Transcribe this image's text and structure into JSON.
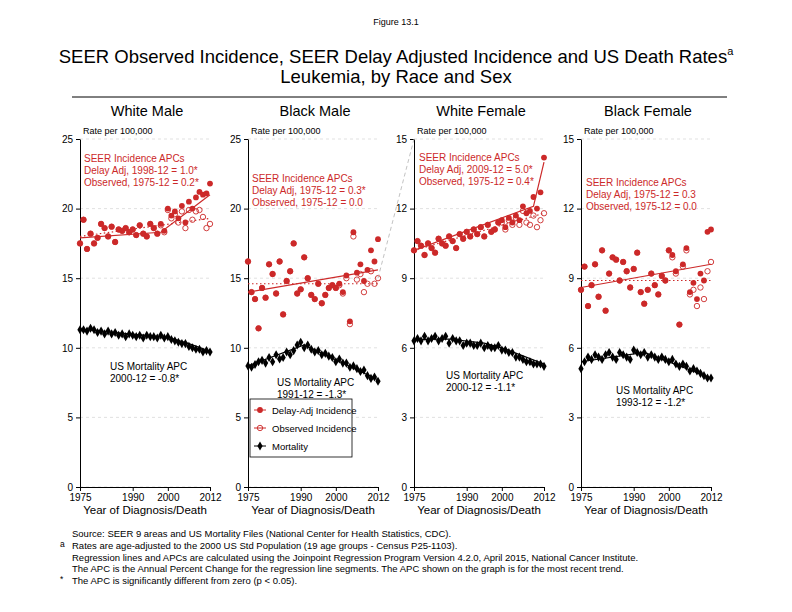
{
  "figure_label": "Figure 13.1",
  "title": "SEER Observed Incidence, SEER Delay Adjusted Incidence and US Death Rates",
  "title_note": "a",
  "subtitle": "Leukemia, by Race and Sex",
  "footnotes": [
    {
      "text": "Source: SEER 9 areas and US Mortality Files (National Center for Health Statistics, CDC)."
    },
    {
      "marker": "a",
      "text": "Rates are age-adjusted to the 2000 US Std Population (19 age groups - Census P25-1103)."
    },
    {
      "text": "Regression lines and APCs are calculated using the Joinpoint Regression Program Version 4.2.0, April 2015, National Cancer Institute."
    },
    {
      "text": "The APC is the Annual Percent Change for the regression line segments. The APC shown on the graph is for the most recent trend."
    },
    {
      "marker": "*",
      "text": "The APC is significantly different from zero (p < 0.05)."
    }
  ],
  "chart_data": [
    {
      "type": "scatter",
      "title": "White Male",
      "ylabel": "Rate per 100,000",
      "xlabel": "Year of Diagnosis/Death",
      "x": [
        1975,
        1976,
        1977,
        1978,
        1979,
        1980,
        1981,
        1982,
        1983,
        1984,
        1985,
        1986,
        1987,
        1988,
        1989,
        1990,
        1991,
        1992,
        1993,
        1994,
        1995,
        1996,
        1997,
        1998,
        1999,
        2000,
        2001,
        2002,
        2003,
        2004,
        2005,
        2006,
        2007,
        2008,
        2009,
        2010,
        2011,
        2012
      ],
      "xlim": [
        1975,
        2012
      ],
      "xticks": [
        1975,
        1990,
        2000,
        2012
      ],
      "ylim": [
        0,
        25
      ],
      "yticks": [
        0,
        5,
        10,
        15,
        20,
        25
      ],
      "grid": true,
      "incidence_note": [
        "SEER Incidence APCs",
        "Delay Adj, 1998-12 = 1.0*",
        "Observed, 1975-12 = 0.2*"
      ],
      "mortality_note": [
        "US Mortality APC",
        "2000-12 = -0.8*"
      ],
      "series": [
        {
          "color": "#cc2929",
          "marker": "circle",
          "line_style": "solid",
          "values": [
            17.5,
            19.2,
            17.1,
            18.2,
            17.5,
            17.9,
            18.9,
            18.6,
            18.0,
            18.7,
            17.6,
            18.5,
            18.4,
            18.6,
            18.3,
            18.5,
            18.1,
            18.8,
            18.2,
            18.0,
            18.9,
            18.6,
            18.2,
            18.9,
            18.4,
            20.0,
            19.5,
            19.8,
            19.3,
            20.2,
            19.0,
            20.5,
            20.0,
            20.8,
            21.2,
            21.0,
            21.1,
            21.8
          ],
          "trend": {
            "x": [
              1975,
              1998,
              2012
            ],
            "values": [
              17.9,
              18.3,
              21.0
            ]
          }
        },
        {
          "color": "#cc2929",
          "marker": "circle-open",
          "line_style": "dotted",
          "values": [
            17.5,
            19.2,
            17.1,
            18.2,
            17.5,
            17.9,
            18.9,
            18.6,
            18.0,
            18.7,
            17.6,
            18.5,
            18.4,
            18.6,
            18.3,
            18.5,
            18.1,
            18.8,
            18.2,
            18.0,
            18.9,
            18.6,
            18.2,
            18.8,
            18.3,
            19.9,
            19.3,
            19.6,
            19.0,
            19.8,
            18.6,
            19.9,
            19.2,
            19.8,
            19.9,
            19.4,
            18.6,
            18.9
          ],
          "trend": {
            "x": [
              1975,
              2012
            ],
            "values": [
              18.0,
              19.3
            ]
          }
        },
        {
          "color": "#000000",
          "marker": "diamond",
          "line_style": "solid",
          "values": [
            11.3,
            11.3,
            11.2,
            11.4,
            11.3,
            11.1,
            11.2,
            11.0,
            11.2,
            11.0,
            11.1,
            10.9,
            11.0,
            10.8,
            11.0,
            10.9,
            10.8,
            10.9,
            10.7,
            10.9,
            10.8,
            10.8,
            10.7,
            10.9,
            10.7,
            10.8,
            10.6,
            10.5,
            10.4,
            10.3,
            10.3,
            10.1,
            10.0,
            9.9,
            9.9,
            9.7,
            9.8,
            9.7
          ],
          "trend": {
            "x": [
              1975,
              1985,
              2000,
              2006,
              2012
            ],
            "values": [
              11.35,
              11.1,
              10.75,
              10.3,
              9.75
            ]
          }
        }
      ]
    },
    {
      "type": "scatter",
      "title": "Black Male",
      "ylabel": "Rate per 100,000",
      "xlabel": "Year of Diagnosis/Death",
      "x": [
        1975,
        1976,
        1977,
        1978,
        1979,
        1980,
        1981,
        1982,
        1983,
        1984,
        1985,
        1986,
        1987,
        1988,
        1989,
        1990,
        1991,
        1992,
        1993,
        1994,
        1995,
        1996,
        1997,
        1998,
        1999,
        2000,
        2001,
        2002,
        2003,
        2004,
        2005,
        2006,
        2007,
        2008,
        2009,
        2010,
        2011,
        2012
      ],
      "xlim": [
        1975,
        2012
      ],
      "xticks": [
        1975,
        1990,
        2000,
        2012
      ],
      "ylim": [
        0,
        25
      ],
      "yticks": [
        0,
        5,
        10,
        15,
        20,
        25
      ],
      "grid": true,
      "legend": "lower left",
      "incidence_note": [
        "SEER Incidence APCs",
        "Delay Adj, 1975-12 = 0.3*",
        "Observed, 1975-12 = 0.0"
      ],
      "mortality_note": [
        "US Mortality APC",
        "1991-12 = -1.3*"
      ],
      "series": [
        {
          "name": "Delay-Adj Incidence",
          "color": "#cc2929",
          "marker": "circle",
          "line_style": "solid",
          "values": [
            16.2,
            14.0,
            13.5,
            11.4,
            14.3,
            13.6,
            16.0,
            15.3,
            13.9,
            16.2,
            12.4,
            14.8,
            15.5,
            17.5,
            13.9,
            14.2,
            16.5,
            15.0,
            13.8,
            13.5,
            14.6,
            13.2,
            13.8,
            14.3,
            14.5,
            14.3,
            14.6,
            14.0,
            15.2,
            11.9,
            18.3,
            15.4,
            16.0,
            14.8,
            15.6,
            17.0,
            16.2,
            17.8
          ],
          "trend": {
            "x": [
              1975,
              2012
            ],
            "values": [
              14.0,
              15.6
            ]
          }
        },
        {
          "name": "Observed Incidence",
          "color": "#cc2929",
          "marker": "circle-open",
          "line_style": "dotted",
          "values": [
            16.2,
            14.0,
            13.5,
            11.4,
            14.3,
            13.6,
            16.0,
            15.3,
            13.9,
            16.2,
            12.4,
            14.8,
            15.5,
            17.5,
            13.9,
            14.2,
            16.5,
            15.0,
            13.8,
            13.5,
            14.6,
            13.2,
            13.8,
            14.3,
            14.5,
            14.3,
            14.5,
            13.9,
            15.0,
            11.7,
            18.0,
            14.9,
            15.3,
            14.0,
            14.6,
            15.5,
            14.6,
            15.0
          ],
          "trend": {
            "x": [
              1975,
              2012
            ],
            "values": [
              14.6,
              14.6
            ]
          }
        },
        {
          "name": "Mortality",
          "color": "#000000",
          "marker": "diamond",
          "line_style": "solid",
          "values": [
            8.7,
            8.6,
            8.8,
            9.0,
            9.1,
            8.9,
            9.3,
            9.0,
            9.5,
            9.2,
            9.3,
            9.7,
            9.5,
            9.8,
            10.2,
            10.4,
            10.0,
            10.2,
            9.9,
            9.7,
            9.8,
            9.5,
            9.6,
            9.4,
            9.3,
            9.0,
            9.2,
            8.9,
            8.9,
            8.6,
            8.7,
            8.5,
            8.3,
            8.4,
            8.0,
            7.8,
            7.9,
            7.6
          ],
          "trend": {
            "x": [
              1975,
              1991,
              2012
            ],
            "values": [
              8.7,
              10.2,
              7.7
            ]
          }
        }
      ]
    },
    {
      "type": "scatter",
      "title": "White Female",
      "ylabel": "Rate per 100,000",
      "xlabel": "Year of Diagnosis/Death",
      "x": [
        1975,
        1976,
        1977,
        1978,
        1979,
        1980,
        1981,
        1982,
        1983,
        1984,
        1985,
        1986,
        1987,
        1988,
        1989,
        1990,
        1991,
        1992,
        1993,
        1994,
        1995,
        1996,
        1997,
        1998,
        1999,
        2000,
        2001,
        2002,
        2003,
        2004,
        2005,
        2006,
        2007,
        2008,
        2009,
        2010,
        2011,
        2012
      ],
      "xlim": [
        1975,
        2012
      ],
      "xticks": [
        1975,
        1990,
        2000,
        2012
      ],
      "ylim": [
        0,
        15
      ],
      "yticks": [
        0,
        3,
        6,
        9,
        12,
        15
      ],
      "grid": true,
      "incidence_note": [
        "SEER Incidence APCs",
        "Delay Adj, 2009-12 = 5.0*",
        "Observed, 1975-12 = 0.4*"
      ],
      "mortality_note": [
        "US Mortality APC",
        "2000-12 = -1.1*"
      ],
      "series": [
        {
          "color": "#cc2929",
          "marker": "circle",
          "line_style": "solid",
          "values": [
            10.2,
            10.6,
            10.4,
            10.0,
            10.5,
            10.3,
            10.1,
            10.7,
            10.5,
            10.4,
            10.8,
            10.6,
            10.3,
            10.9,
            10.7,
            11.0,
            10.8,
            11.1,
            10.9,
            11.2,
            10.8,
            11.3,
            11.0,
            11.1,
            11.4,
            11.5,
            11.2,
            11.6,
            11.4,
            11.7,
            11.5,
            12.1,
            11.8,
            11.9,
            12.5,
            12.0,
            12.7,
            14.2
          ],
          "trend": {
            "x": [
              1975,
              2009,
              2012
            ],
            "values": [
              10.2,
              12.1,
              14.0
            ]
          }
        },
        {
          "color": "#cc2929",
          "marker": "circle-open",
          "line_style": "dotted",
          "values": [
            10.2,
            10.6,
            10.4,
            10.0,
            10.5,
            10.3,
            10.1,
            10.7,
            10.5,
            10.4,
            10.8,
            10.6,
            10.3,
            10.9,
            10.7,
            11.0,
            10.8,
            11.1,
            10.9,
            11.2,
            10.8,
            11.3,
            11.0,
            11.1,
            11.4,
            11.4,
            11.1,
            11.5,
            11.3,
            11.6,
            11.3,
            11.9,
            11.4,
            11.3,
            11.7,
            11.2,
            11.5,
            11.8
          ],
          "trend": {
            "x": [
              1975,
              2012
            ],
            "values": [
              10.2,
              11.8
            ]
          }
        },
        {
          "color": "#000000",
          "marker": "diamond",
          "line_style": "solid",
          "values": [
            6.3,
            6.4,
            6.3,
            6.5,
            6.3,
            6.4,
            6.5,
            6.3,
            6.4,
            6.5,
            6.2,
            6.4,
            6.3,
            6.3,
            6.1,
            6.2,
            6.2,
            6.1,
            6.1,
            6.2,
            6.0,
            6.1,
            6.0,
            6.0,
            6.1,
            5.9,
            5.9,
            5.8,
            5.8,
            5.6,
            5.6,
            5.5,
            5.4,
            5.4,
            5.3,
            5.3,
            5.3,
            5.2
          ],
          "trend": {
            "x": [
              1975,
              1985,
              1995,
              2000,
              2006,
              2012
            ],
            "values": [
              6.35,
              6.38,
              6.2,
              6.0,
              5.65,
              5.3
            ]
          }
        }
      ]
    },
    {
      "type": "scatter",
      "title": "Black Female",
      "ylabel": "Rate per 100,000",
      "xlabel": "Year of Diagnosis/Death",
      "x": [
        1975,
        1976,
        1977,
        1978,
        1979,
        1980,
        1981,
        1982,
        1983,
        1984,
        1985,
        1986,
        1987,
        1988,
        1989,
        1990,
        1991,
        1992,
        1993,
        1994,
        1995,
        1996,
        1997,
        1998,
        1999,
        2000,
        2001,
        2002,
        2003,
        2004,
        2005,
        2006,
        2007,
        2008,
        2009,
        2010,
        2011,
        2012
      ],
      "xlim": [
        1975,
        2012
      ],
      "xticks": [
        1975,
        1990,
        2000,
        2012
      ],
      "ylim": [
        0,
        15
      ],
      "yticks": [
        0,
        3,
        6,
        9,
        12,
        15
      ],
      "grid": true,
      "incidence_note": [
        "SEER Incidence APCs",
        "Delay Adj, 1975-12 = 0.3",
        "Observed, 1975-12 = 0.0"
      ],
      "mortality_note": [
        "US Mortality APC",
        "1993-12 = -1.2*"
      ],
      "series": [
        {
          "color": "#cc2929",
          "marker": "circle",
          "line_style": "solid",
          "values": [
            8.5,
            9.5,
            7.8,
            8.7,
            9.6,
            8.2,
            10.2,
            7.6,
            9.2,
            9.9,
            9.8,
            8.9,
            9.7,
            9.3,
            8.6,
            9.4,
            10.1,
            8.4,
            7.9,
            8.5,
            9.2,
            8.7,
            8.3,
            9.1,
            8.9,
            10.2,
            10.0,
            9.3,
            7.0,
            9.6,
            10.3,
            8.4,
            8.8,
            8.1,
            9.2,
            8.9,
            11.0,
            11.1
          ],
          "trend": {
            "x": [
              1975,
              2012
            ],
            "values": [
              8.6,
              9.6
            ]
          }
        },
        {
          "color": "#cc2929",
          "marker": "circle-open",
          "line_style": "dotted",
          "values": [
            8.5,
            9.5,
            7.8,
            8.7,
            9.6,
            8.2,
            10.2,
            7.6,
            9.2,
            9.9,
            9.8,
            8.9,
            9.7,
            9.3,
            8.6,
            9.4,
            10.1,
            8.4,
            7.9,
            8.5,
            9.2,
            8.7,
            8.3,
            9.1,
            8.9,
            10.2,
            9.9,
            9.2,
            7.0,
            9.5,
            10.2,
            8.3,
            8.5,
            7.8,
            8.6,
            8.1,
            9.3,
            9.7
          ],
          "trend": {
            "x": [
              1975,
              2012
            ],
            "values": [
              8.9,
              8.9
            ]
          }
        },
        {
          "color": "#000000",
          "marker": "diamond",
          "line_style": "solid",
          "values": [
            5.1,
            5.4,
            5.6,
            5.5,
            5.7,
            5.6,
            5.5,
            5.7,
            5.8,
            5.6,
            5.5,
            5.8,
            5.7,
            5.6,
            5.5,
            5.9,
            5.8,
            5.7,
            5.8,
            5.6,
            5.7,
            5.6,
            5.5,
            5.6,
            5.5,
            5.4,
            5.5,
            5.3,
            5.2,
            5.3,
            5.2,
            5.0,
            5.1,
            5.0,
            4.9,
            4.8,
            4.7,
            4.7
          ],
          "trend": {
            "x": [
              1975,
              1993,
              2012
            ],
            "values": [
              5.4,
              5.8,
              4.7
            ]
          }
        }
      ]
    }
  ]
}
